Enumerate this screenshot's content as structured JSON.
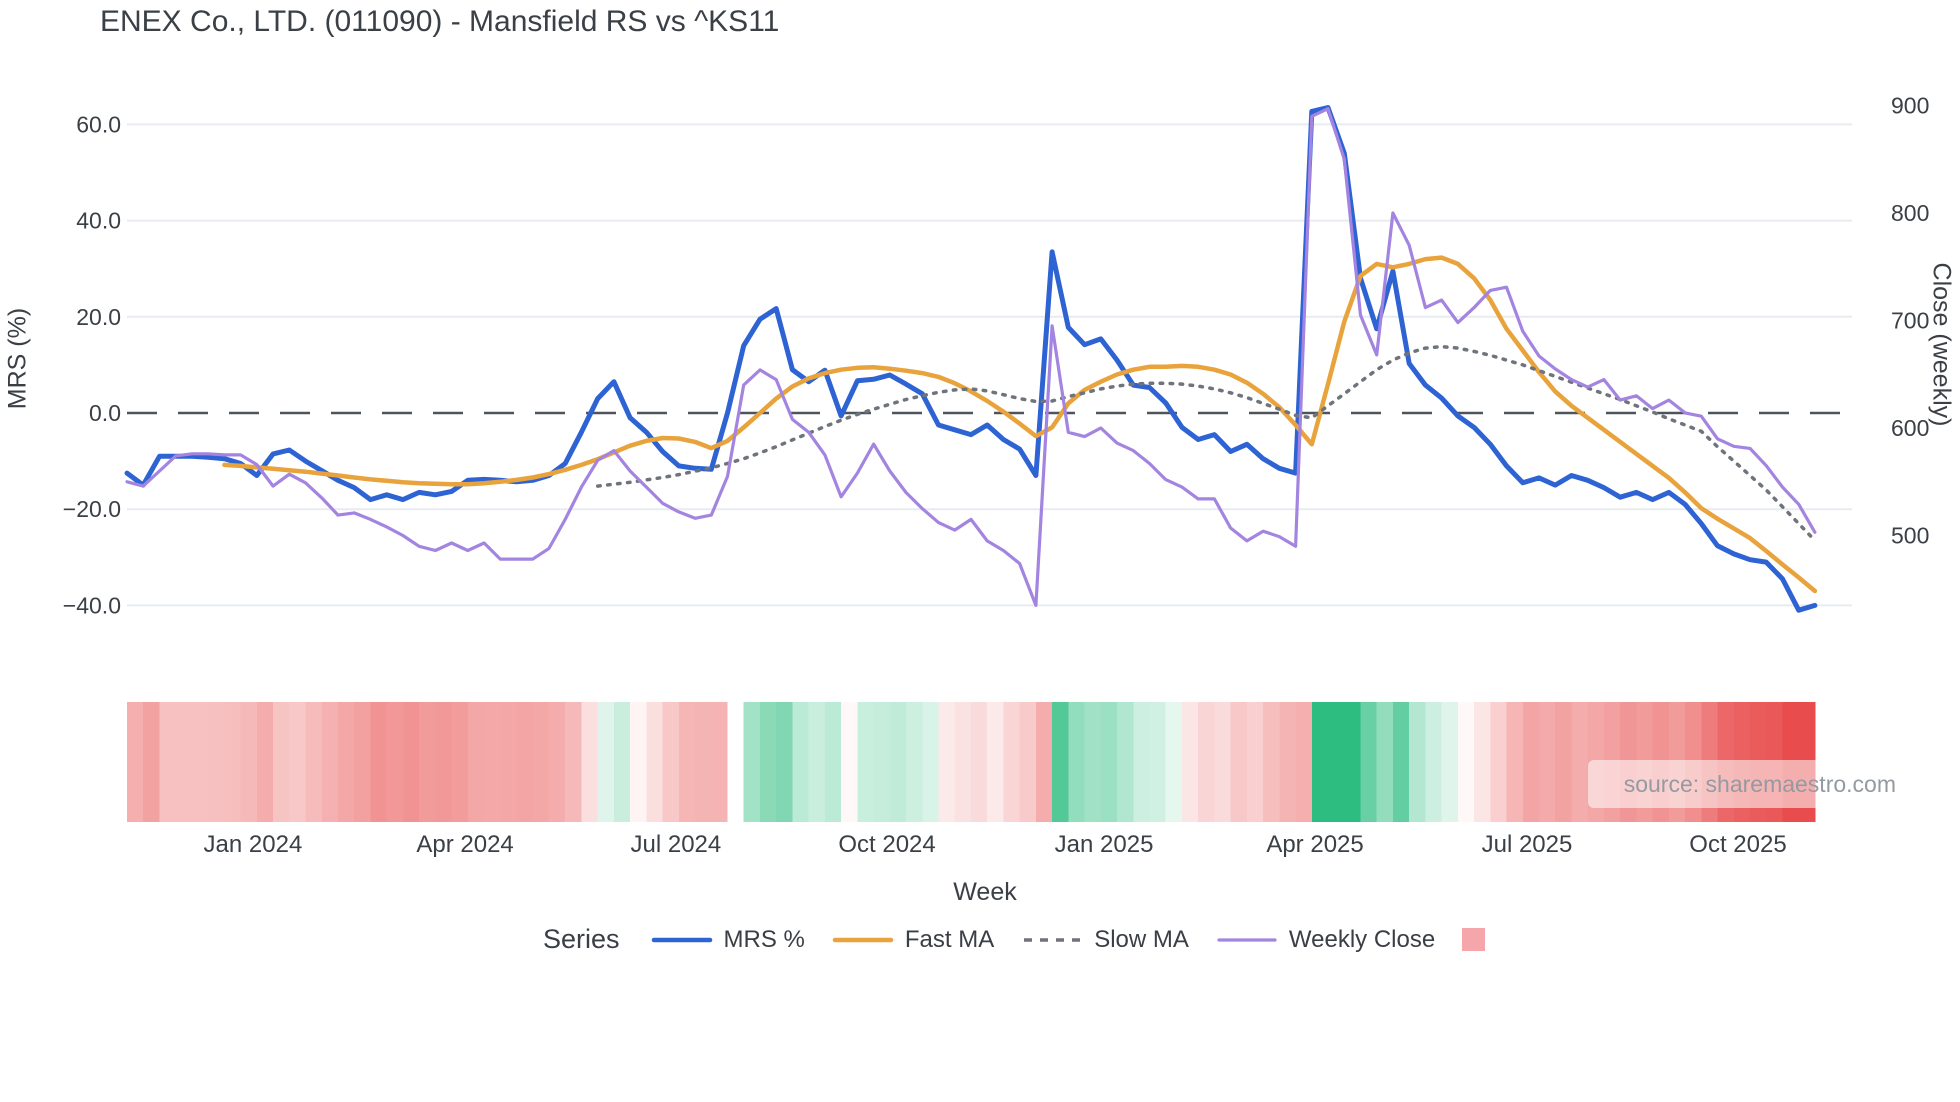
{
  "title": "ENEX Co., LTD. (011090) - Mansfield RS vs ^KS11",
  "watermark": "source: sharemaestro.com",
  "legend": {
    "series_label": "Series",
    "swatch_color": "#f4a6aa"
  },
  "chart_data": {
    "type": "line",
    "title": "ENEX Co., LTD. (011090) - Mansfield RS vs ^KS11",
    "xlabel": "Week",
    "ylabel_left": "MRS (%)",
    "ylabel_right": "Close (weekly)",
    "x_tick_labels": [
      "Jan 2024",
      "Apr 2024",
      "Jul 2024",
      "Oct 2024",
      "Jan 2025",
      "Apr 2025",
      "Jul 2025",
      "Oct 2025"
    ],
    "x_tick_positions": [
      7.76,
      20.83,
      33.82,
      46.83,
      60.2,
      73.2,
      86.26,
      99.26
    ],
    "x_range_weeks": [
      0,
      104
    ],
    "yleft_tick_labels": [
      "60.0",
      "40.0",
      "20.0",
      "0.0",
      "−20.0",
      "−40.0"
    ],
    "yleft_ticks": [
      60,
      40,
      20,
      0,
      -20,
      -40
    ],
    "yright_tick_labels": [
      "900",
      "800",
      "700",
      "600",
      "500"
    ],
    "yright_ticks": [
      900,
      800,
      700,
      600,
      500
    ],
    "ylim_left": [
      -45,
      68
    ],
    "ylim_right": [
      430,
      915
    ],
    "zero_line_left": 0,
    "grid": true,
    "legend_position": "bottom",
    "series": [
      {
        "name": "MRS %",
        "axis": "left",
        "color": "#2e63d3",
        "width": 5,
        "dash": "solid",
        "values": [
          -12.5,
          -15,
          -9,
          -9,
          -9,
          -9.2,
          -9.5,
          -10.5,
          -13,
          -8.5,
          -7.7,
          -10,
          -12,
          -14,
          -15.5,
          -18,
          -17,
          -18,
          -16.5,
          -17,
          -16.3,
          -14,
          -13.8,
          -14,
          -14.3,
          -14,
          -13,
          -10.5,
          -4,
          3,
          6.5,
          -1,
          -4,
          -8,
          -11,
          -11.5,
          -11.7,
          0,
          14,
          19.5,
          21.7,
          9,
          6.5,
          8.9,
          -0.6,
          6.7,
          7,
          7.9,
          6,
          4,
          -2.5,
          -3.5,
          -4.5,
          -2.5,
          -5.5,
          -7.5,
          -13,
          33.5,
          17.8,
          14.2,
          15.4,
          11,
          5.8,
          5.3,
          2.1,
          -3,
          -5.5,
          -4.5,
          -8,
          -6.5,
          -9.5,
          -11.5,
          -12.5,
          62.7,
          63.5,
          54,
          28,
          17.5,
          29.5,
          10.3,
          5.8,
          3.1,
          -0.6,
          -3,
          -6.5,
          -11,
          -14.5,
          -13.5,
          -15,
          -13,
          -14,
          -15.5,
          -17.5,
          -16.5,
          -18,
          -16.5,
          -19,
          -23,
          -27.6,
          -29.3,
          -30.5,
          -31,
          -34.5,
          -41,
          -40
        ]
      },
      {
        "name": "Fast MA",
        "axis": "left",
        "color": "#e8a33c",
        "width": 4.5,
        "dash": "solid",
        "values": [
          null,
          null,
          null,
          null,
          null,
          null,
          -10.8,
          -11,
          -11.3,
          -11.6,
          -11.9,
          -12.2,
          -12.6,
          -13,
          -13.4,
          -13.8,
          -14.1,
          -14.4,
          -14.6,
          -14.7,
          -14.8,
          -14.8,
          -14.6,
          -14.3,
          -13.9,
          -13.4,
          -12.7,
          -11.8,
          -10.8,
          -9.6,
          -8.2,
          -6.8,
          -5.8,
          -5.2,
          -5.3,
          -6,
          -7.3,
          -5.8,
          -3,
          0,
          3,
          5.5,
          7.2,
          8.3,
          9,
          9.4,
          9.5,
          9.2,
          8.8,
          8.3,
          7.5,
          6.2,
          4.5,
          2.5,
          0.3,
          -2.2,
          -4.8,
          -3,
          2,
          4.8,
          6.5,
          8,
          9,
          9.6,
          9.6,
          9.8,
          9.6,
          9,
          8,
          6.3,
          4,
          1.2,
          -2.5,
          -6.5,
          6,
          19,
          28.5,
          31,
          30.3,
          31,
          32,
          32.3,
          31,
          28,
          23.5,
          17.5,
          13,
          8.5,
          4.5,
          1.5,
          -1,
          -3.5,
          -6,
          -8.5,
          -11,
          -13.5,
          -16.5,
          -19.8,
          -22,
          -24,
          -26,
          -28.7,
          -31.5,
          -34.2,
          -37
        ]
      },
      {
        "name": "Slow MA",
        "axis": "left",
        "color": "#6f747c",
        "width": 3.5,
        "dash": "dot",
        "values": [
          null,
          null,
          null,
          null,
          null,
          null,
          null,
          null,
          null,
          null,
          null,
          null,
          null,
          null,
          null,
          null,
          null,
          null,
          null,
          null,
          null,
          null,
          null,
          null,
          null,
          null,
          null,
          null,
          null,
          -15.2,
          -14.8,
          -14.4,
          -13.9,
          -13.4,
          -12.8,
          -12.1,
          -11.4,
          -10.5,
          -9.5,
          -8.3,
          -7,
          -5.6,
          -4.2,
          -2.8,
          -1.5,
          -0.3,
          0.8,
          1.8,
          2.8,
          3.6,
          4.3,
          4.8,
          5,
          4.6,
          3.8,
          3,
          2.4,
          2.5,
          3.4,
          4.2,
          5,
          5.6,
          6,
          6.2,
          6.2,
          6,
          5.6,
          5,
          4.2,
          3.2,
          2,
          0.8,
          -0.5,
          -1,
          1.5,
          4,
          6.5,
          9,
          11,
          12.5,
          13.5,
          13.8,
          13.5,
          12.8,
          12,
          11,
          10,
          8.8,
          7.6,
          6.4,
          5.2,
          4,
          2.8,
          1.5,
          0.2,
          -1.2,
          -2.5,
          -3.8,
          -7,
          -10,
          -13,
          -16,
          -19.5,
          -23,
          -26.5
        ]
      },
      {
        "name": "Weekly Close",
        "axis": "right",
        "color": "#a384e0",
        "width": 3.2,
        "dash": "solid",
        "values": [
          550,
          546,
          560,
          574,
          576,
          576,
          575,
          575,
          566,
          546,
          557,
          549,
          535,
          519,
          521,
          515,
          508,
          500,
          490,
          486,
          493,
          486,
          493,
          478,
          478,
          478,
          488,
          515,
          545,
          570,
          579,
          560,
          545,
          530,
          522,
          516,
          519,
          555,
          640,
          654,
          645,
          608,
          596,
          575,
          536,
          558,
          585,
          560,
          540,
          525,
          512,
          505,
          515,
          495,
          486,
          474,
          435,
          695,
          596,
          592,
          600,
          586,
          579,
          567,
          552,
          545,
          534,
          534,
          507,
          495,
          504,
          499,
          490,
          890,
          897,
          850,
          705,
          668,
          800,
          770,
          712,
          719,
          698,
          712,
          728,
          731,
          690,
          667,
          655,
          645,
          638,
          645,
          626,
          630,
          618,
          626,
          614,
          611,
          590,
          583,
          581,
          565,
          545,
          529,
          503
        ]
      }
    ],
    "heatmap_strip": {
      "description": "weekly cells colored by MRS % sign and magnitude",
      "source_series": "MRS %",
      "positive_color": "#2dbd80",
      "negative_color": "#e84c4c"
    }
  }
}
